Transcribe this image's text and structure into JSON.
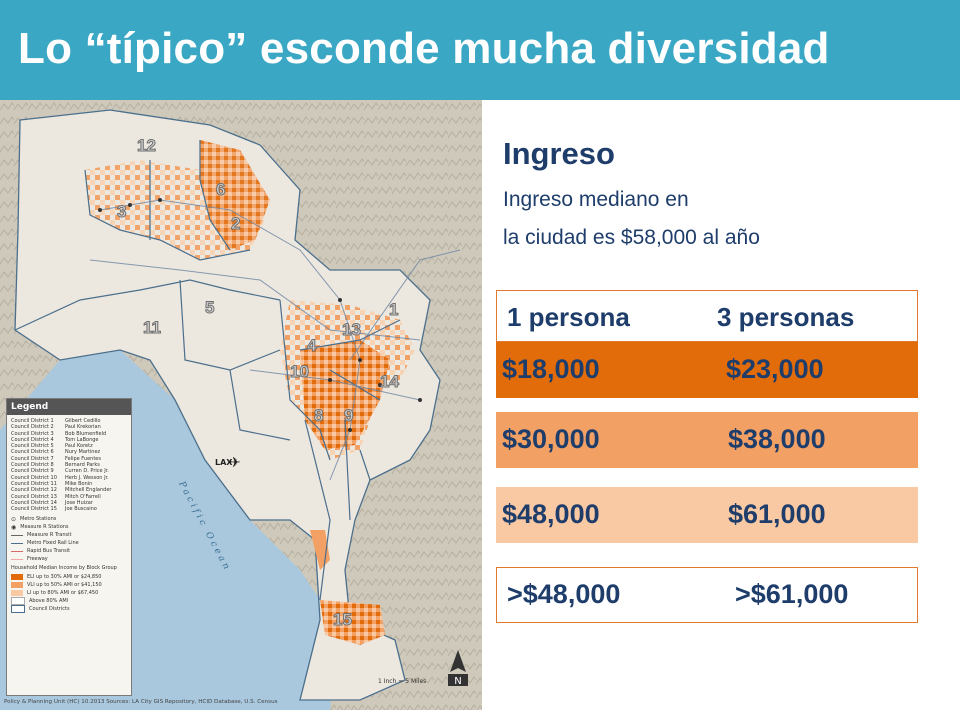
{
  "header": {
    "title": "Lo “típico” esconde mucha diversidad"
  },
  "income": {
    "heading": "Ingreso",
    "line1": "Ingreso mediano en",
    "line2": "la ciudad es $58,000 al año",
    "col1": "1 persona",
    "col2": "3 personas",
    "rows": [
      {
        "a": "$18,000",
        "b": "$23,000"
      },
      {
        "a": "$30,000",
        "b": "$38,000"
      },
      {
        "a": "$48,000",
        "b": "$61,000"
      },
      {
        "a": ">$48,000",
        "b": ">$61,000"
      }
    ]
  },
  "map": {
    "districts": [
      "12",
      "6",
      "3",
      "2",
      "5",
      "11",
      "4",
      "1",
      "13",
      "10",
      "14",
      "8",
      "9",
      "15"
    ],
    "lax": "LAX",
    "ocean": "Pacific Ocean",
    "scale": "1 Inch = 5 Miles",
    "credit": "Policy & Planning Unit (HC) 10.2013 Sources: LA City GIS Repository, HCID Database, U.S. Census",
    "legend": {
      "title": "Legend",
      "members": [
        {
          "district": "Council District 1",
          "name": "Gilbert Cedillo"
        },
        {
          "district": "Council District 2",
          "name": "Paul Krekorian"
        },
        {
          "district": "Council District 3",
          "name": "Bob Blumenfield"
        },
        {
          "district": "Council District 4",
          "name": "Tom LaBonge"
        },
        {
          "district": "Council District 5",
          "name": "Paul Koretz"
        },
        {
          "district": "Council District 6",
          "name": "Nury Martinez"
        },
        {
          "district": "Council District 7",
          "name": "Felipe Fuentes"
        },
        {
          "district": "Council District 8",
          "name": "Bernard Parks"
        },
        {
          "district": "Council District 9",
          "name": "Curren D. Price Jr."
        },
        {
          "district": "Council District 10",
          "name": "Herb J. Wesson Jr."
        },
        {
          "district": "Council District 11",
          "name": "Mike Bonin"
        },
        {
          "district": "Council District 12",
          "name": "Mitchell Englander"
        },
        {
          "district": "Council District 13",
          "name": "Mitch O'Farrell"
        },
        {
          "district": "Council District 14",
          "name": "Jose Huizar"
        },
        {
          "district": "Council District 15",
          "name": "Joe Buscaino"
        }
      ],
      "symbols": [
        "Metro Stations",
        "Measure R Stations",
        "Measure R Transit",
        "Metro Fixed Rail Line",
        "Rapid Bus Transit",
        "Freeway"
      ],
      "income_heading": "Household Median Income by Block Group",
      "income_classes": [
        "ELI up to 30% AMI or $24,850",
        "VLI up to 50% AMI or $41,150",
        "LI up to 80% AMI or $67,450",
        "Above 80% AMI",
        "Council Districts"
      ]
    }
  },
  "colors": {
    "title_bar": "#3aa7c4",
    "text_navy": "#1e3d6b",
    "eli": "#e36c0a",
    "vli": "#f2a064",
    "li": "#f9c9a3",
    "border": "#e07a2e",
    "ocean": "#a9c8dd",
    "land": "#ece7df"
  }
}
